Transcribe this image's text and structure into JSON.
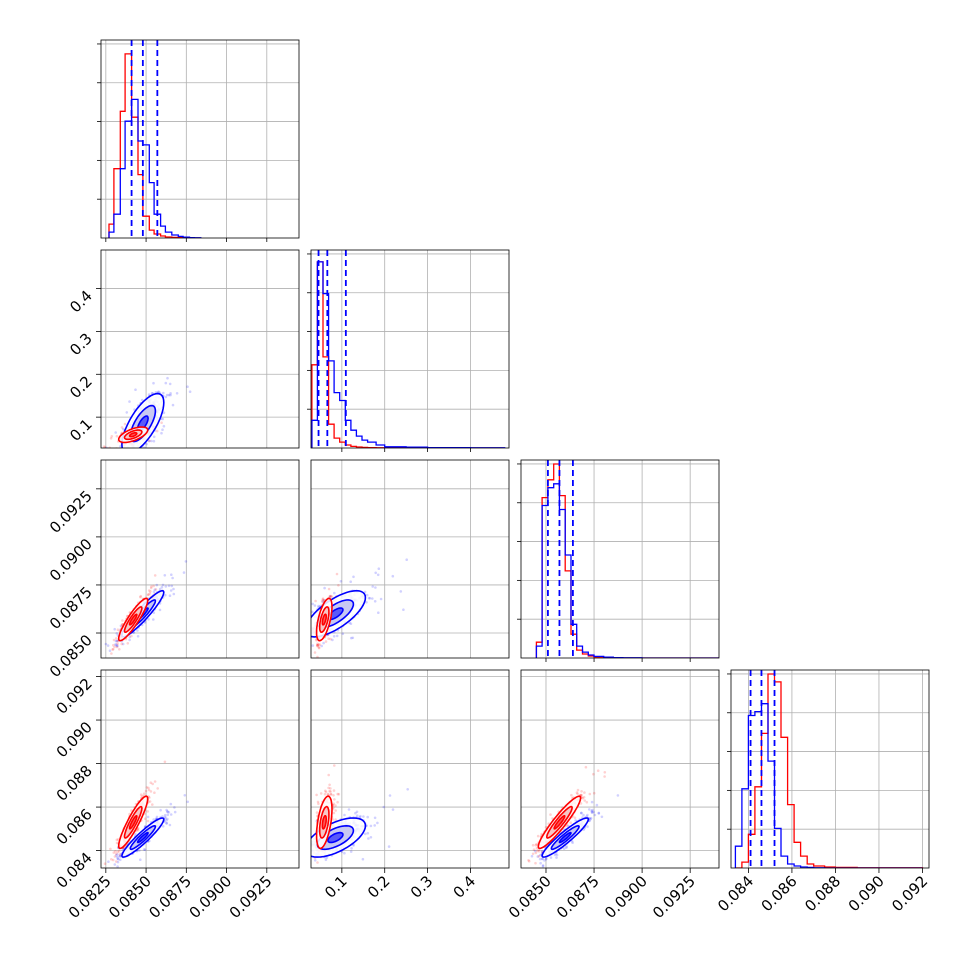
{
  "chart_data": {
    "type": "corner",
    "title": "",
    "series": [
      {
        "name": "",
        "color": "#ff0000"
      },
      {
        "name": "",
        "color": "#0000ff"
      }
    ],
    "quantile_line_color": "#0000ff",
    "scatter_alpha": "low",
    "grid": true,
    "params": [
      {
        "label": "",
        "range": [
          0.0822,
          0.0945
        ],
        "ticks": [
          0.0825,
          0.085,
          0.0875,
          0.09,
          0.0925
        ],
        "tick_labels": [
          "0.0825",
          "0.0850",
          "0.0875",
          "0.0900",
          "0.0925"
        ],
        "quantiles": [
          0.0841,
          0.0848,
          0.0857
        ],
        "bin_edges": [
          0.0827,
          0.083,
          0.0834,
          0.0837,
          0.0841,
          0.0845,
          0.0848,
          0.0852,
          0.0855,
          0.0859,
          0.0862,
          0.0866,
          0.087,
          0.0873,
          0.0877,
          0.088,
          0.0884
        ],
        "hist_red": [
          0.07,
          0.35,
          0.64,
          0.93,
          0.61,
          0.32,
          0.11,
          0.04,
          0.02,
          0.01,
          0.005,
          0.003,
          0.002,
          0,
          0,
          0
        ],
        "hist_blue": [
          0.03,
          0.12,
          0.35,
          0.59,
          0.7,
          0.49,
          0.47,
          0.28,
          0.12,
          0.06,
          0.03,
          0.015,
          0.008,
          0.004,
          0.002,
          0.001
        ]
      },
      {
        "label": "",
        "range": [
          0.028,
          0.49
        ],
        "ticks": [
          0.1,
          0.2,
          0.3,
          0.4
        ],
        "tick_labels": [
          "0.1",
          "0.2",
          "0.3",
          "0.4"
        ],
        "quantiles": [
          0.0456,
          0.0661,
          0.1093
        ],
        "bin_edges": [
          0.03,
          0.043,
          0.056,
          0.069,
          0.082,
          0.095,
          0.108,
          0.121,
          0.134,
          0.147,
          0.16,
          0.18,
          0.2,
          0.25,
          0.3,
          0.4,
          0.48
        ],
        "hist_red": [
          0.42,
          0.94,
          0.46,
          0.12,
          0.05,
          0.03,
          0.015,
          0.008,
          0.005,
          0.003,
          0.002,
          0.001,
          0,
          0,
          0,
          0
        ],
        "hist_blue": [
          0.14,
          0.94,
          0.78,
          0.44,
          0.28,
          0.24,
          0.14,
          0.09,
          0.06,
          0.04,
          0.03,
          0.015,
          0.006,
          0.004,
          0.002,
          0.001
        ]
      },
      {
        "label": "",
        "range": [
          0.0837,
          0.094
        ],
        "ticks": [
          0.085,
          0.0875,
          0.09,
          0.0925
        ],
        "tick_labels": [
          "0.0850",
          "0.0875",
          "0.0900",
          "0.0925"
        ],
        "quantiles": [
          0.0851,
          0.0857,
          0.0864
        ],
        "bin_edges": [
          0.0845,
          0.0848,
          0.0851,
          0.0854,
          0.0857,
          0.086,
          0.0863,
          0.0866,
          0.0869,
          0.0872,
          0.0875,
          0.088,
          0.0885,
          0.089,
          0.09,
          0.0915,
          0.094
        ],
        "hist_red": [
          0.08,
          0.81,
          0.9,
          0.98,
          0.82,
          0.44,
          0.12,
          0.04,
          0.02,
          0.01,
          0.005,
          0.003,
          0.001,
          0,
          0,
          0
        ],
        "hist_blue": [
          0.06,
          0.77,
          0.86,
          0.88,
          0.75,
          0.52,
          0.17,
          0.06,
          0.03,
          0.015,
          0.008,
          0.004,
          0.002,
          0.001,
          0,
          0
        ]
      },
      {
        "label": "",
        "range": [
          0.0832,
          0.0923
        ],
        "ticks": [
          0.084,
          0.086,
          0.088,
          0.09,
          0.092
        ],
        "tick_labels": [
          "0.084",
          "0.086",
          "0.088",
          "0.090",
          "0.092"
        ],
        "quantiles": [
          0.0841,
          0.0846,
          0.0852
        ],
        "bin_edges": [
          0.0834,
          0.0837,
          0.084,
          0.0843,
          0.0846,
          0.0849,
          0.0852,
          0.0855,
          0.0858,
          0.0861,
          0.0864,
          0.0867,
          0.087,
          0.0875,
          0.088,
          0.089,
          0.092
        ],
        "hist_red": [
          0.0,
          0.03,
          0.17,
          0.41,
          0.68,
          0.98,
          0.94,
          0.66,
          0.32,
          0.13,
          0.06,
          0.02,
          0.01,
          0.005,
          0.003,
          0.001
        ],
        "hist_blue": [
          0.11,
          0.4,
          0.77,
          0.79,
          0.83,
          0.54,
          0.2,
          0.06,
          0.02,
          0.01,
          0.005,
          0.003,
          0.001,
          0,
          0,
          0
        ]
      }
    ],
    "pairs": [
      {
        "row": 1,
        "col": 0,
        "red": {
          "mean": [
            0.0842,
            0.059
          ],
          "sd": [
            0.00045,
            0.009
          ],
          "rho": 0.6
        },
        "blue": {
          "mean": [
            0.0848,
            0.085
          ],
          "sd": [
            0.00065,
            0.035
          ],
          "rho": 0.7
        }
      },
      {
        "row": 2,
        "col": 0,
        "red": {
          "mean": [
            0.0842,
            0.0857
          ],
          "sd": [
            0.00045,
            0.00055
          ],
          "rho": 0.9
        },
        "blue": {
          "mean": [
            0.0848,
            0.086
          ],
          "sd": [
            0.00065,
            0.0006
          ],
          "rho": 0.93
        }
      },
      {
        "row": 2,
        "col": 1,
        "red": {
          "mean": [
            0.059,
            0.0857
          ],
          "sd": [
            0.009,
            0.00055
          ],
          "rho": 0.6
        },
        "blue": {
          "mean": [
            0.085,
            0.086
          ],
          "sd": [
            0.035,
            0.0006
          ],
          "rho": 0.7
        }
      },
      {
        "row": 3,
        "col": 0,
        "red": {
          "mean": [
            0.0842,
            0.0853
          ],
          "sd": [
            0.00045,
            0.0006
          ],
          "rho": 0.9
        },
        "blue": {
          "mean": [
            0.0848,
            0.0846
          ],
          "sd": [
            0.00065,
            0.00045
          ],
          "rho": 0.93
        }
      },
      {
        "row": 3,
        "col": 1,
        "red": {
          "mean": [
            0.059,
            0.0853
          ],
          "sd": [
            0.009,
            0.0006
          ],
          "rho": 0.5
        },
        "blue": {
          "mean": [
            0.085,
            0.0846
          ],
          "sd": [
            0.035,
            0.00045
          ],
          "rho": 0.6
        }
      },
      {
        "row": 3,
        "col": 2,
        "red": {
          "mean": [
            0.0857,
            0.0853
          ],
          "sd": [
            0.00055,
            0.0006
          ],
          "rho": 0.93
        },
        "blue": {
          "mean": [
            0.086,
            0.0846
          ],
          "sd": [
            0.0006,
            0.00045
          ],
          "rho": 0.93
        }
      }
    ]
  }
}
